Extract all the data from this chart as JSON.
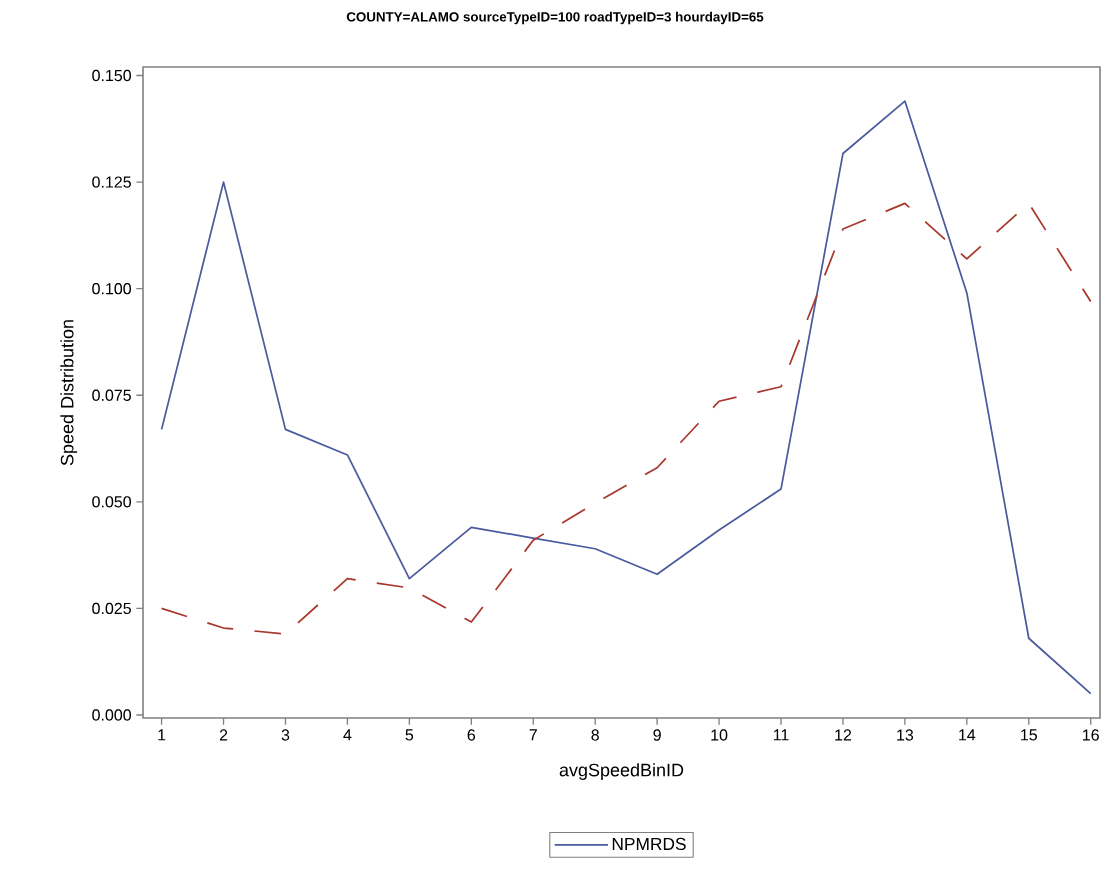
{
  "chart_data": {
    "type": "line",
    "title": "COUNTY=ALAMO sourceTypeID=100 roadTypeID=3 hourdayID=65",
    "xlabel": "avgSpeedBinID",
    "ylabel": "Speed Distribution",
    "x": [
      1,
      2,
      3,
      4,
      5,
      6,
      7,
      8,
      9,
      10,
      11,
      12,
      13,
      14,
      15,
      16
    ],
    "series": [
      {
        "name": "NPMRDS",
        "color": "#4a5a9c",
        "line_style": "solid",
        "values": [
          0.067,
          0.125,
          0.067,
          0.061,
          0.032,
          0.044,
          0.0415,
          0.039,
          0.033,
          0.0434,
          0.053,
          0.1317,
          0.144,
          0.099,
          0.018,
          0.005
        ]
      },
      {
        "color": "#a8372c",
        "line_style": "dashed",
        "values": [
          0.025,
          0.0204,
          0.019,
          0.032,
          0.0298,
          0.0218,
          0.041,
          0.0497,
          0.058,
          0.0736,
          0.077,
          0.114,
          0.12,
          0.107,
          0.12,
          0.097
        ]
      }
    ],
    "xlim": [
      0.7,
      16.15
    ],
    "ylim": [
      -0.0007,
      0.152
    ],
    "xticks": [
      1,
      2,
      3,
      4,
      5,
      6,
      7,
      8,
      9,
      10,
      11,
      12,
      13,
      14,
      15,
      16
    ],
    "yticks": [
      {
        "value": 0,
        "label": "0.000"
      },
      {
        "value": 0.025,
        "label": "0.025"
      },
      {
        "value": 0.05,
        "label": "0.050"
      },
      {
        "value": 0.075,
        "label": "0.075"
      },
      {
        "value": 0.1,
        "label": "0.100"
      },
      {
        "value": 0.125,
        "label": "0.125"
      },
      {
        "value": 0.15,
        "label": "0.150"
      }
    ],
    "grid": false,
    "legend": "bottom",
    "marker": "none"
  }
}
